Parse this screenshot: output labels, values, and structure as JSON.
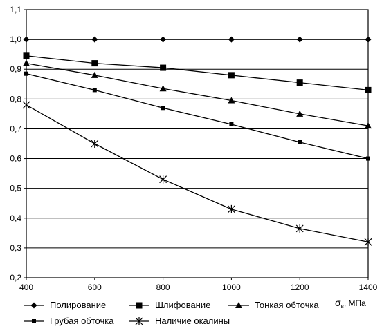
{
  "chart_data": {
    "type": "line",
    "title": "",
    "xlabel_symbol": "σ",
    "xlabel_subscript": "в",
    "xlabel_unit": ", МПа",
    "ylabel": "",
    "x": [
      400,
      600,
      800,
      1000,
      1200,
      1400
    ],
    "x_ticks": [
      400,
      600,
      800,
      1000,
      1200,
      1400
    ],
    "x_tick_labels": [
      "400",
      "600",
      "800",
      "1000",
      "1200",
      "1400"
    ],
    "y_ticks": [
      0.2,
      0.3,
      0.4,
      0.5,
      0.6,
      0.7,
      0.8,
      0.9,
      1.0,
      1.1
    ],
    "y_tick_labels": [
      "0,2",
      "0,3",
      "0,4",
      "0,5",
      "0,6",
      "0,7",
      "0,8",
      "0,9",
      "1,0",
      "1,1"
    ],
    "xlim": [
      400,
      1400
    ],
    "ylim": [
      0.2,
      1.1
    ],
    "grid": "horizontal",
    "legend_position": "bottom",
    "series": [
      {
        "name": "Полирование",
        "marker": "diamond",
        "values": [
          1.0,
          1.0,
          1.0,
          1.0,
          1.0,
          1.0
        ]
      },
      {
        "name": "Шлифование",
        "marker": "square",
        "values": [
          0.945,
          0.92,
          0.905,
          0.88,
          0.855,
          0.83
        ]
      },
      {
        "name": "Тонкая обточка",
        "marker": "triangle",
        "values": [
          0.92,
          0.88,
          0.835,
          0.795,
          0.75,
          0.71
        ]
      },
      {
        "name": "Грубая обточка",
        "marker": "small-square",
        "values": [
          0.885,
          0.83,
          0.77,
          0.715,
          0.655,
          0.6
        ]
      },
      {
        "name": "Наличие окалины",
        "marker": "asterisk",
        "values": [
          0.78,
          0.65,
          0.53,
          0.43,
          0.365,
          0.32
        ]
      }
    ]
  }
}
